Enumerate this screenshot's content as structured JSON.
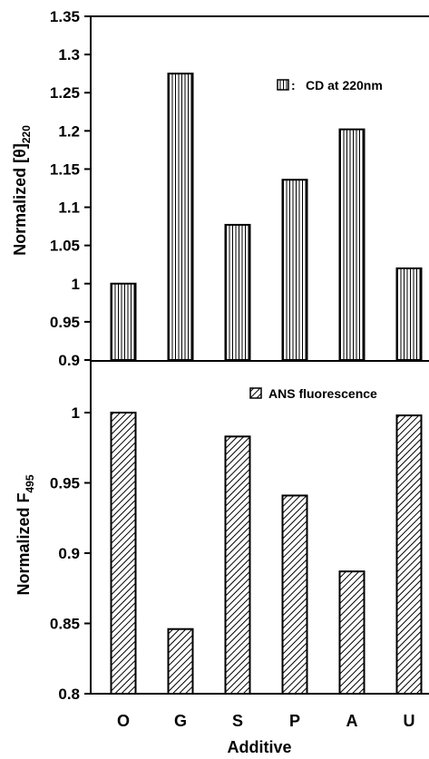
{
  "chart_data": [
    {
      "type": "bar",
      "categories": [
        "O",
        "G",
        "S",
        "P",
        "A",
        "U"
      ],
      "values": [
        1.0,
        1.275,
        1.077,
        1.136,
        1.202,
        1.02
      ],
      "ylabel_main": "Normalized [θ]",
      "ylabel_sub": "220",
      "ylim": [
        0.9,
        1.35
      ],
      "yticks": [
        "0.9",
        "0.95",
        "1",
        "1.05",
        "1.1",
        "1.15",
        "1.2",
        "1.25",
        "1.3",
        "1.35"
      ],
      "legend": "CD at 220nm",
      "legend_sep": ":",
      "legend_position": "top-right",
      "pattern": "vertical-hatch",
      "grid": false
    },
    {
      "type": "bar",
      "categories": [
        "O",
        "G",
        "S",
        "P",
        "A",
        "U"
      ],
      "values": [
        1.0,
        0.846,
        0.983,
        0.941,
        0.887,
        0.998
      ],
      "ylabel_main": "Normalized F",
      "ylabel_sub": "495",
      "ylim": [
        0.8,
        1.02
      ],
      "yticks": [
        "0.8",
        "0.85",
        "0.9",
        "0.95",
        "1"
      ],
      "legend": "ANS fluorescence",
      "legend_position": "top-right",
      "pattern": "diagonal-hatch",
      "grid": false
    }
  ],
  "xlabel": "Additive"
}
